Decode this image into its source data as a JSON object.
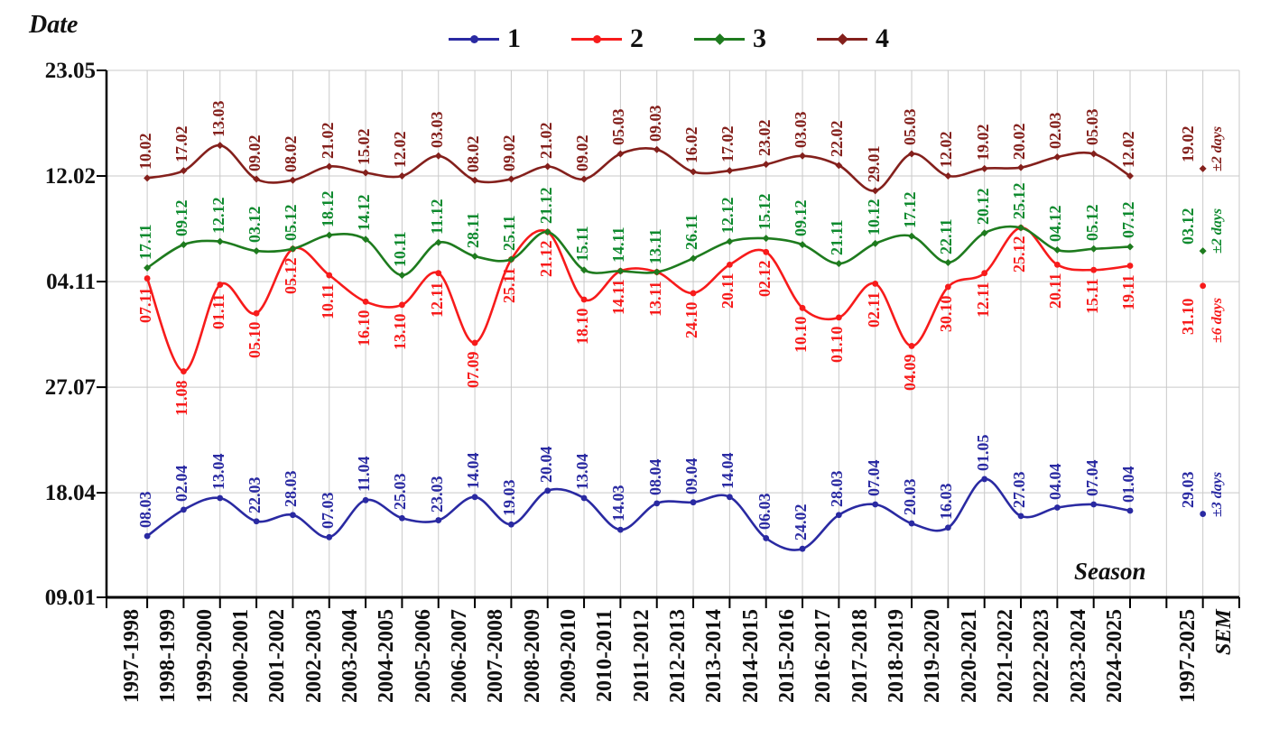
{
  "axis_titles": {
    "y_title": "Date",
    "x_title": "Season",
    "sem_axis_label": "SEM",
    "sem_category": "1997-2025"
  },
  "chart_data": {
    "type": "line",
    "legend_position": "top",
    "grid": true,
    "y_axis": {
      "unit": "date (DD.MM)",
      "tick_labels_top_to_bottom": [
        "23.05",
        "12.02",
        "04.11",
        "27.07",
        "18.04",
        "09.01"
      ],
      "tick_second_year_flags": [
        1,
        1,
        0,
        0,
        0,
        0
      ]
    },
    "categories": [
      "1997-1998",
      "1998-1999",
      "1999-2000",
      "2000-2001",
      "2001-2002",
      "2002-2003",
      "2003-2004",
      "2004-2005",
      "2005-2006",
      "2006-2007",
      "2007-2008",
      "2008-2009",
      "2009-2010",
      "2010-2011",
      "2011-2012",
      "2012-2013",
      "2013-2014",
      "2014-2015",
      "2015-2016",
      "2016-2017",
      "2017-2018",
      "2018-2019",
      "2019-2020",
      "2020-2021",
      "2021-2022",
      "2022-2023",
      "2023-2024",
      "2024-2025"
    ],
    "series": [
      {
        "name": "1",
        "color": "#2A2AA2",
        "label_color": "#2A2AA2",
        "marker": "circle",
        "second_year": 0,
        "label_side": "above",
        "values": [
          "08.03",
          "02.04",
          "13.04",
          "22.03",
          "28.03",
          "07.03",
          "11.04",
          "25.03",
          "23.03",
          "14.04",
          "19.03",
          "20.04",
          "13.04",
          "14.03",
          "08.04",
          "09.04",
          "14.04",
          "06.03",
          "24.02",
          "28.03",
          "07.04",
          "20.03",
          "16.03",
          "01.05",
          "27.03",
          "04.04",
          "07.04",
          "01.04"
        ],
        "sem": {
          "value": "29.03",
          "error": "±3 days"
        }
      },
      {
        "name": "2",
        "color": "#F71B1B",
        "label_color": "#F71B1B",
        "marker": "circle",
        "second_year": 0,
        "label_side": "below",
        "values": [
          "07.11",
          "11.08",
          "01.11",
          "05.10",
          "05.12",
          "10.11",
          "16.10",
          "13.10",
          "12.11",
          "07.09",
          "25.11",
          "21.12",
          "18.10",
          "14.11",
          "13.11",
          "24.10",
          "20.11",
          "02.12",
          "10.10",
          "01.10",
          "02.11",
          "04.09",
          "30.10",
          "12.11",
          "25.12",
          "20.11",
          "15.11",
          "19.11"
        ],
        "sem": {
          "value": "31.10",
          "error": "±6 days"
        }
      },
      {
        "name": "3",
        "color": "#1E7B1E",
        "label_color": "#0E8A2E",
        "marker": "diamond",
        "second_year": 0,
        "label_side": "above",
        "values": [
          "17.11",
          "09.12",
          "12.12",
          "03.12",
          "05.12",
          "18.12",
          "14.12",
          "10.11",
          "11.12",
          "28.11",
          "25.11",
          "21.12",
          "15.11",
          "14.11",
          "13.11",
          "26.11",
          "12.12",
          "15.12",
          "09.12",
          "21.11",
          "10.12",
          "17.12",
          "22.11",
          "20.12",
          "25.12",
          "04.12",
          "05.12",
          "07.12"
        ],
        "sem": {
          "value": "03.12",
          "error": "±2 days"
        }
      },
      {
        "name": "4",
        "color": "#84201C",
        "label_color": "#84201C",
        "marker": "diamond",
        "second_year": 1,
        "label_side": "above",
        "values": [
          "10.02",
          "17.02",
          "13.03",
          "09.02",
          "08.02",
          "21.02",
          "15.02",
          "12.02",
          "03.03",
          "08.02",
          "09.02",
          "21.02",
          "09.02",
          "05.03",
          "09.03",
          "16.02",
          "17.02",
          "23.02",
          "03.03",
          "22.02",
          "29.01",
          "05.03",
          "12.02",
          "19.02",
          "20.02",
          "02.03",
          "05.03",
          "12.02"
        ],
        "sem": {
          "value": "19.02",
          "error": "±2 days"
        }
      }
    ]
  }
}
